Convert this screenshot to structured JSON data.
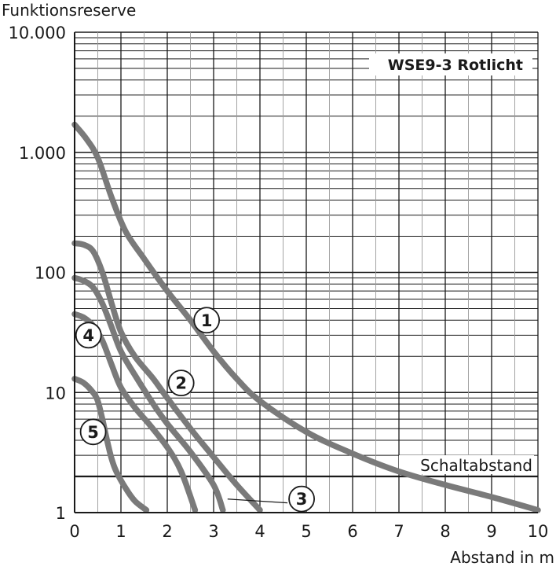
{
  "chart_data": {
    "type": "line",
    "title": "WSE9-3 Rotlicht",
    "ylabel": "Funktionsreserve",
    "xlabel": "Abstand in m",
    "x_scale": "linear",
    "y_scale": "log",
    "xlim": [
      0,
      10
    ],
    "ylim": [
      1,
      10000
    ],
    "grid": true,
    "x_ticks": [
      {
        "value": 0,
        "label": "0"
      },
      {
        "value": 1,
        "label": "1"
      },
      {
        "value": 2,
        "label": "2"
      },
      {
        "value": 3,
        "label": "3"
      },
      {
        "value": 4,
        "label": "4"
      },
      {
        "value": 5,
        "label": "5"
      },
      {
        "value": 6,
        "label": "6"
      },
      {
        "value": 7,
        "label": "7"
      },
      {
        "value": 8,
        "label": "8"
      },
      {
        "value": 9,
        "label": "9"
      },
      {
        "value": 10,
        "label": "10"
      }
    ],
    "y_ticks": [
      {
        "value": 1,
        "label": "1"
      },
      {
        "value": 10,
        "label": "10"
      },
      {
        "value": 100,
        "label": "100"
      },
      {
        "value": 1000,
        "label": "1.000"
      },
      {
        "value": 10000,
        "label": "10.000"
      }
    ],
    "reference_line": {
      "y": 2,
      "label": "Schaltabstand"
    },
    "series_color": "#7a7a7a",
    "series": [
      {
        "marker": "1",
        "points": [
          [
            0,
            1700
          ],
          [
            0.25,
            1300
          ],
          [
            0.5,
            900
          ],
          [
            0.8,
            420
          ],
          [
            1.1,
            220
          ],
          [
            1.5,
            130
          ],
          [
            2,
            70
          ],
          [
            2.5,
            40
          ],
          [
            3,
            22
          ],
          [
            3.5,
            13
          ],
          [
            4,
            8.5
          ],
          [
            5,
            4.7
          ],
          [
            6,
            3.1
          ],
          [
            7,
            2.2
          ],
          [
            8,
            1.7
          ],
          [
            9,
            1.35
          ],
          [
            10,
            1.05
          ]
        ]
      },
      {
        "marker": "2",
        "points": [
          [
            0,
            175
          ],
          [
            0.2,
            170
          ],
          [
            0.4,
            150
          ],
          [
            0.6,
            100
          ],
          [
            0.8,
            55
          ],
          [
            1,
            32
          ],
          [
            1.3,
            20
          ],
          [
            1.7,
            13
          ],
          [
            2,
            9
          ],
          [
            2.5,
            5
          ],
          [
            3,
            2.9
          ],
          [
            3.5,
            1.7
          ],
          [
            4,
            1.05
          ]
        ]
      },
      {
        "marker": "3",
        "points": [
          [
            0,
            90
          ],
          [
            0.2,
            85
          ],
          [
            0.4,
            75
          ],
          [
            0.6,
            55
          ],
          [
            0.8,
            35
          ],
          [
            1,
            22
          ],
          [
            1.3,
            14
          ],
          [
            1.7,
            8
          ],
          [
            2,
            5.5
          ],
          [
            2.5,
            3.2
          ],
          [
            3,
            1.7
          ],
          [
            3.2,
            1.05
          ]
        ]
      },
      {
        "marker": "4",
        "points": [
          [
            0,
            45
          ],
          [
            0.2,
            42
          ],
          [
            0.4,
            36
          ],
          [
            0.6,
            27
          ],
          [
            0.8,
            17
          ],
          [
            1,
            11
          ],
          [
            1.3,
            7.5
          ],
          [
            1.6,
            5.5
          ],
          [
            2,
            3.5
          ],
          [
            2.3,
            2.2
          ],
          [
            2.6,
            1.05
          ]
        ]
      },
      {
        "marker": "5",
        "points": [
          [
            0,
            13
          ],
          [
            0.2,
            12
          ],
          [
            0.4,
            10
          ],
          [
            0.5,
            8.5
          ],
          [
            0.6,
            6
          ],
          [
            0.7,
            4
          ],
          [
            0.8,
            2.8
          ],
          [
            0.9,
            2.2
          ],
          [
            1.1,
            1.6
          ],
          [
            1.3,
            1.25
          ],
          [
            1.55,
            1.05
          ]
        ]
      }
    ],
    "markers": [
      {
        "label": "1",
        "x": 2.85,
        "y": 40
      },
      {
        "label": "2",
        "x": 2.3,
        "y": 12
      },
      {
        "label": "3",
        "x": 4.9,
        "y": 1.3,
        "leader_to": {
          "x": 3.2,
          "y": 1.05
        }
      },
      {
        "label": "4",
        "x": 0.3,
        "y": 30
      },
      {
        "label": "5",
        "x": 0.4,
        "y": 4.7
      }
    ]
  }
}
